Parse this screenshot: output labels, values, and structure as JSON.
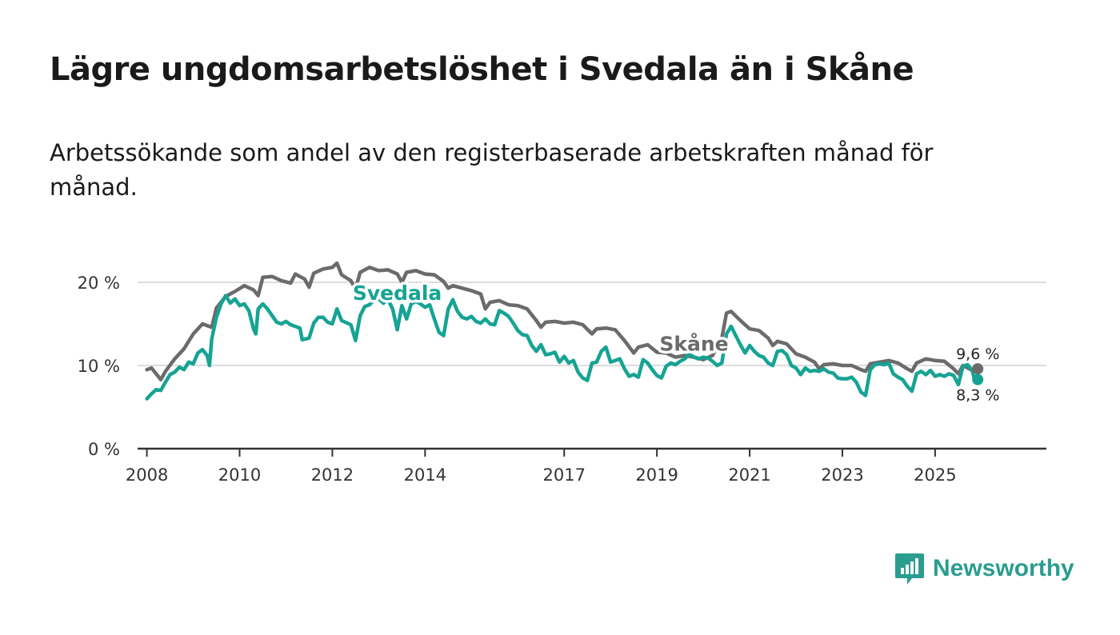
{
  "title": "Lägre ungdomsarbetslöshet i Svedala än i Skåne",
  "subtitle": "Arbetssökande som andel av den registerbaserade arbetskraften månad för månad.",
  "brand": {
    "name": "Newsworthy",
    "icon": "bar-chart-logo-icon",
    "color": "#2a9d8f"
  },
  "colors": {
    "skane": "#6b6b6b",
    "svedala": "#16a394",
    "grid": "#dddddd",
    "axis": "#333333"
  },
  "chart_data": {
    "type": "line",
    "title": "Lägre ungdomsarbetslöshet i Svedala än i Skåne",
    "xlabel": "",
    "ylabel": "",
    "xlim": [
      2007.8,
      2027.4
    ],
    "ylim": [
      0,
      20
    ],
    "yticks": [
      {
        "value": 0,
        "label": "0 %"
      },
      {
        "value": 10,
        "label": "10 %"
      },
      {
        "value": 20,
        "label": "20 %"
      }
    ],
    "xticks": [
      {
        "value": 2008,
        "label": "2008"
      },
      {
        "value": 2010,
        "label": "2010"
      },
      {
        "value": 2012,
        "label": "2012"
      },
      {
        "value": 2014,
        "label": "2014"
      },
      {
        "value": 2017,
        "label": "2017"
      },
      {
        "value": 2019,
        "label": "2019"
      },
      {
        "value": 2021,
        "label": "2021"
      },
      {
        "value": 2023,
        "label": "2023"
      },
      {
        "value": 2025,
        "label": "2025"
      }
    ],
    "series": [
      {
        "name": "Skåne",
        "points": [
          [
            2008.0,
            9.5
          ],
          [
            2008.1,
            9.7
          ],
          [
            2008.2,
            9.0
          ],
          [
            2008.3,
            8.3
          ],
          [
            2008.4,
            9.3
          ],
          [
            2008.6,
            10.8
          ],
          [
            2008.8,
            12.0
          ],
          [
            2009.0,
            13.8
          ],
          [
            2009.2,
            15.0
          ],
          [
            2009.4,
            14.6
          ],
          [
            2009.5,
            16.9
          ],
          [
            2009.7,
            18.3
          ],
          [
            2009.9,
            18.9
          ],
          [
            2010.1,
            19.6
          ],
          [
            2010.3,
            19.1
          ],
          [
            2010.4,
            18.4
          ],
          [
            2010.5,
            20.6
          ],
          [
            2010.7,
            20.7
          ],
          [
            2010.9,
            20.2
          ],
          [
            2011.1,
            19.9
          ],
          [
            2011.2,
            21.0
          ],
          [
            2011.4,
            20.4
          ],
          [
            2011.5,
            19.4
          ],
          [
            2011.6,
            21.1
          ],
          [
            2011.8,
            21.6
          ],
          [
            2012.0,
            21.8
          ],
          [
            2012.1,
            22.3
          ],
          [
            2012.2,
            20.9
          ],
          [
            2012.4,
            20.2
          ],
          [
            2012.5,
            19.2
          ],
          [
            2012.6,
            21.2
          ],
          [
            2012.8,
            21.8
          ],
          [
            2013.0,
            21.4
          ],
          [
            2013.2,
            21.5
          ],
          [
            2013.4,
            21.0
          ],
          [
            2013.5,
            20.0
          ],
          [
            2013.6,
            21.2
          ],
          [
            2013.8,
            21.4
          ],
          [
            2014.0,
            21.0
          ],
          [
            2014.2,
            20.9
          ],
          [
            2014.4,
            20.1
          ],
          [
            2014.5,
            19.3
          ],
          [
            2014.6,
            19.6
          ],
          [
            2014.8,
            19.3
          ],
          [
            2015.0,
            19.0
          ],
          [
            2015.2,
            18.6
          ],
          [
            2015.3,
            16.8
          ],
          [
            2015.4,
            17.6
          ],
          [
            2015.6,
            17.8
          ],
          [
            2015.8,
            17.3
          ],
          [
            2016.0,
            17.2
          ],
          [
            2016.2,
            16.8
          ],
          [
            2016.4,
            15.4
          ],
          [
            2016.5,
            14.6
          ],
          [
            2016.6,
            15.2
          ],
          [
            2016.8,
            15.3
          ],
          [
            2017.0,
            15.1
          ],
          [
            2017.2,
            15.2
          ],
          [
            2017.4,
            14.9
          ],
          [
            2017.6,
            13.8
          ],
          [
            2017.7,
            14.4
          ],
          [
            2017.9,
            14.5
          ],
          [
            2018.1,
            14.3
          ],
          [
            2018.3,
            13.0
          ],
          [
            2018.5,
            11.5
          ],
          [
            2018.6,
            12.2
          ],
          [
            2018.8,
            12.5
          ],
          [
            2019.0,
            11.6
          ],
          [
            2019.2,
            11.5
          ],
          [
            2019.4,
            11.0
          ],
          [
            2019.6,
            11.2
          ],
          [
            2019.8,
            11.0
          ],
          [
            2020.0,
            10.7
          ],
          [
            2020.2,
            11.2
          ],
          [
            2020.4,
            13.3
          ],
          [
            2020.5,
            16.3
          ],
          [
            2020.6,
            16.5
          ],
          [
            2020.8,
            15.4
          ],
          [
            2021.0,
            14.4
          ],
          [
            2021.2,
            14.2
          ],
          [
            2021.4,
            13.3
          ],
          [
            2021.5,
            12.4
          ],
          [
            2021.6,
            12.9
          ],
          [
            2021.8,
            12.6
          ],
          [
            2022.0,
            11.4
          ],
          [
            2022.2,
            11.0
          ],
          [
            2022.4,
            10.4
          ],
          [
            2022.5,
            9.6
          ],
          [
            2022.6,
            10.1
          ],
          [
            2022.8,
            10.2
          ],
          [
            2023.0,
            10.0
          ],
          [
            2023.2,
            10.0
          ],
          [
            2023.4,
            9.5
          ],
          [
            2023.5,
            9.3
          ],
          [
            2023.6,
            10.2
          ],
          [
            2023.8,
            10.4
          ],
          [
            2024.0,
            10.6
          ],
          [
            2024.2,
            10.3
          ],
          [
            2024.4,
            9.6
          ],
          [
            2024.5,
            9.3
          ],
          [
            2024.6,
            10.3
          ],
          [
            2024.8,
            10.8
          ],
          [
            2025.0,
            10.6
          ],
          [
            2025.2,
            10.5
          ],
          [
            2025.4,
            9.6
          ],
          [
            2025.5,
            9.0
          ],
          [
            2025.6,
            10.0
          ],
          [
            2025.8,
            9.4
          ],
          [
            2025.92,
            9.6
          ]
        ]
      },
      {
        "name": "Svedala",
        "points": [
          [
            2008.0,
            6.0
          ],
          [
            2008.1,
            6.6
          ],
          [
            2008.2,
            7.1
          ],
          [
            2008.3,
            7.0
          ],
          [
            2008.4,
            8.0
          ],
          [
            2008.5,
            8.9
          ],
          [
            2008.6,
            9.2
          ],
          [
            2008.7,
            9.8
          ],
          [
            2008.8,
            9.5
          ],
          [
            2008.9,
            10.4
          ],
          [
            2009.0,
            10.2
          ],
          [
            2009.1,
            11.5
          ],
          [
            2009.2,
            11.9
          ],
          [
            2009.3,
            11.2
          ],
          [
            2009.35,
            10.0
          ],
          [
            2009.4,
            13.2
          ],
          [
            2009.5,
            15.8
          ],
          [
            2009.6,
            17.4
          ],
          [
            2009.7,
            18.4
          ],
          [
            2009.8,
            17.5
          ],
          [
            2009.9,
            18.0
          ],
          [
            2010.0,
            17.2
          ],
          [
            2010.1,
            17.4
          ],
          [
            2010.2,
            16.6
          ],
          [
            2010.3,
            14.4
          ],
          [
            2010.35,
            13.8
          ],
          [
            2010.4,
            16.8
          ],
          [
            2010.5,
            17.4
          ],
          [
            2010.6,
            16.8
          ],
          [
            2010.8,
            15.2
          ],
          [
            2010.9,
            15.0
          ],
          [
            2011.0,
            15.3
          ],
          [
            2011.1,
            14.9
          ],
          [
            2011.3,
            14.5
          ],
          [
            2011.35,
            13.1
          ],
          [
            2011.5,
            13.3
          ],
          [
            2011.6,
            15.1
          ],
          [
            2011.7,
            15.8
          ],
          [
            2011.8,
            15.8
          ],
          [
            2011.9,
            15.2
          ],
          [
            2012.0,
            15.0
          ],
          [
            2012.1,
            16.8
          ],
          [
            2012.2,
            15.4
          ],
          [
            2012.4,
            14.9
          ],
          [
            2012.5,
            13.0
          ],
          [
            2012.6,
            16.0
          ],
          [
            2012.7,
            17.1
          ],
          [
            2012.8,
            17.3
          ],
          [
            2012.9,
            17.9
          ],
          [
            2013.0,
            18.0
          ],
          [
            2013.1,
            17.5
          ],
          [
            2013.2,
            17.9
          ],
          [
            2013.3,
            16.8
          ],
          [
            2013.4,
            14.3
          ],
          [
            2013.5,
            17.2
          ],
          [
            2013.6,
            15.6
          ],
          [
            2013.7,
            17.4
          ],
          [
            2013.8,
            17.7
          ],
          [
            2013.9,
            17.4
          ],
          [
            2014.0,
            17.0
          ],
          [
            2014.1,
            17.3
          ],
          [
            2014.2,
            15.6
          ],
          [
            2014.3,
            14.0
          ],
          [
            2014.4,
            13.6
          ],
          [
            2014.5,
            16.8
          ],
          [
            2014.6,
            17.9
          ],
          [
            2014.7,
            16.5
          ],
          [
            2014.8,
            15.8
          ],
          [
            2014.9,
            15.6
          ],
          [
            2015.0,
            15.9
          ],
          [
            2015.1,
            15.3
          ],
          [
            2015.2,
            15.1
          ],
          [
            2015.3,
            15.6
          ],
          [
            2015.4,
            15.0
          ],
          [
            2015.5,
            14.9
          ],
          [
            2015.6,
            16.6
          ],
          [
            2015.7,
            16.3
          ],
          [
            2015.8,
            15.9
          ],
          [
            2015.9,
            15.1
          ],
          [
            2016.0,
            14.2
          ],
          [
            2016.1,
            13.7
          ],
          [
            2016.2,
            13.6
          ],
          [
            2016.3,
            12.4
          ],
          [
            2016.4,
            11.7
          ],
          [
            2016.5,
            12.5
          ],
          [
            2016.6,
            11.3
          ],
          [
            2016.7,
            11.4
          ],
          [
            2016.8,
            11.6
          ],
          [
            2016.9,
            10.4
          ],
          [
            2017.0,
            11.1
          ],
          [
            2017.1,
            10.3
          ],
          [
            2017.2,
            10.6
          ],
          [
            2017.3,
            9.2
          ],
          [
            2017.4,
            8.5
          ],
          [
            2017.5,
            8.2
          ],
          [
            2017.6,
            10.3
          ],
          [
            2017.7,
            10.4
          ],
          [
            2017.8,
            11.7
          ],
          [
            2017.9,
            12.2
          ],
          [
            2018.0,
            10.4
          ],
          [
            2018.1,
            10.6
          ],
          [
            2018.2,
            10.8
          ],
          [
            2018.3,
            9.6
          ],
          [
            2018.4,
            8.7
          ],
          [
            2018.5,
            8.9
          ],
          [
            2018.6,
            8.6
          ],
          [
            2018.7,
            10.7
          ],
          [
            2018.8,
            10.3
          ],
          [
            2018.9,
            9.5
          ],
          [
            2019.0,
            8.8
          ],
          [
            2019.1,
            8.5
          ],
          [
            2019.2,
            9.9
          ],
          [
            2019.3,
            10.3
          ],
          [
            2019.4,
            10.1
          ],
          [
            2019.5,
            10.5
          ],
          [
            2019.6,
            10.8
          ],
          [
            2019.7,
            11.4
          ],
          [
            2019.8,
            11.0
          ],
          [
            2019.9,
            10.8
          ],
          [
            2020.0,
            11.0
          ],
          [
            2020.1,
            10.9
          ],
          [
            2020.2,
            10.5
          ],
          [
            2020.3,
            10.0
          ],
          [
            2020.4,
            10.3
          ],
          [
            2020.5,
            13.8
          ],
          [
            2020.6,
            14.7
          ],
          [
            2020.7,
            13.6
          ],
          [
            2020.8,
            12.5
          ],
          [
            2020.9,
            11.5
          ],
          [
            2021.0,
            12.4
          ],
          [
            2021.1,
            11.7
          ],
          [
            2021.2,
            11.2
          ],
          [
            2021.3,
            11.0
          ],
          [
            2021.4,
            10.3
          ],
          [
            2021.5,
            10.0
          ],
          [
            2021.6,
            11.7
          ],
          [
            2021.7,
            11.8
          ],
          [
            2021.8,
            11.3
          ],
          [
            2021.9,
            10.0
          ],
          [
            2022.0,
            9.7
          ],
          [
            2022.1,
            8.9
          ],
          [
            2022.2,
            9.7
          ],
          [
            2022.3,
            9.3
          ],
          [
            2022.4,
            9.4
          ],
          [
            2022.5,
            9.3
          ],
          [
            2022.6,
            9.6
          ],
          [
            2022.7,
            9.2
          ],
          [
            2022.8,
            9.1
          ],
          [
            2022.9,
            8.5
          ],
          [
            2023.0,
            8.4
          ],
          [
            2023.1,
            8.4
          ],
          [
            2023.2,
            8.6
          ],
          [
            2023.3,
            8.0
          ],
          [
            2023.4,
            6.8
          ],
          [
            2023.5,
            6.4
          ],
          [
            2023.6,
            9.5
          ],
          [
            2023.7,
            10.1
          ],
          [
            2023.8,
            10.2
          ],
          [
            2023.9,
            10.1
          ],
          [
            2024.0,
            10.3
          ],
          [
            2024.1,
            9.0
          ],
          [
            2024.2,
            8.6
          ],
          [
            2024.3,
            8.3
          ],
          [
            2024.4,
            7.5
          ],
          [
            2024.5,
            6.9
          ],
          [
            2024.6,
            9.0
          ],
          [
            2024.7,
            9.3
          ],
          [
            2024.8,
            8.9
          ],
          [
            2024.9,
            9.4
          ],
          [
            2025.0,
            8.7
          ],
          [
            2025.1,
            8.9
          ],
          [
            2025.2,
            8.7
          ],
          [
            2025.3,
            9.0
          ],
          [
            2025.4,
            8.8
          ],
          [
            2025.5,
            7.7
          ],
          [
            2025.6,
            9.9
          ],
          [
            2025.7,
            10.1
          ],
          [
            2025.8,
            9.4
          ],
          [
            2025.85,
            8.3
          ],
          [
            2025.92,
            8.3
          ]
        ]
      }
    ],
    "series_labels": [
      {
        "name": "Svedala",
        "x": 2013.4,
        "y": 17.9
      },
      {
        "name": "Skåne",
        "x": 2019.8,
        "y": 11.8
      }
    ],
    "end_labels": [
      {
        "series": "Skåne",
        "label": "9,6 %",
        "value": 9.6,
        "position": "above"
      },
      {
        "series": "Svedala",
        "label": "8,3 %",
        "value": 8.3,
        "position": "below"
      }
    ]
  }
}
